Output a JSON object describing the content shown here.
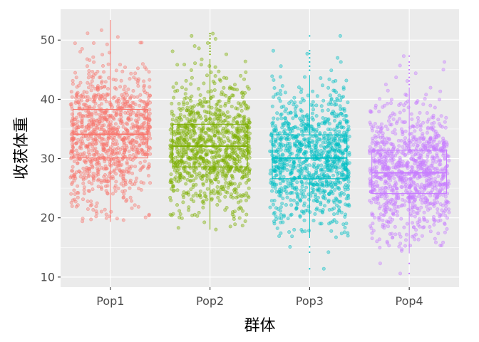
{
  "chart_data": {
    "type": "boxplot-jitter",
    "xlabel": "群体",
    "ylabel": "收获体重",
    "categories": [
      "Pop1",
      "Pop2",
      "Pop3",
      "Pop4"
    ],
    "colors": [
      "#F8766D",
      "#7CAE00",
      "#00BFC4",
      "#C77CFF"
    ],
    "ylim": [
      8.3,
      55.2
    ],
    "y_ticks": [
      10,
      20,
      30,
      40,
      50
    ],
    "grid": true,
    "background": "#EBEBEB",
    "boxes": [
      {
        "category": "Pop1",
        "min": 19.3,
        "q1": 30.1,
        "median": 34.1,
        "q3": 38.3,
        "max": 53.4,
        "n": 1000,
        "outliers": []
      },
      {
        "category": "Pop2",
        "min": 18.0,
        "q1": 28.6,
        "median": 32.1,
        "q3": 35.8,
        "max": 46.8,
        "n": 1000,
        "outliers": [
          47.6,
          48.1,
          48.6,
          49.0,
          49.5,
          50.2,
          50.7,
          51.1
        ]
      },
      {
        "category": "Pop3",
        "min": 16.6,
        "q1": 26.6,
        "median": 30.1,
        "q3": 34.0,
        "max": 44.1,
        "n": 1000,
        "outliers": [
          11.4,
          14.2,
          15.1,
          44.9,
          45.6,
          46.3,
          47.0,
          47.7,
          48.2,
          50.7
        ]
      },
      {
        "category": "Pop4",
        "min": 14.0,
        "q1": 24.1,
        "median": 27.6,
        "q3": 31.4,
        "max": 42.0,
        "n": 1000,
        "outliers": [
          10.6,
          12.3,
          42.5,
          43.1,
          43.7,
          44.4,
          45.0,
          45.7,
          46.3,
          47.3
        ]
      }
    ]
  }
}
